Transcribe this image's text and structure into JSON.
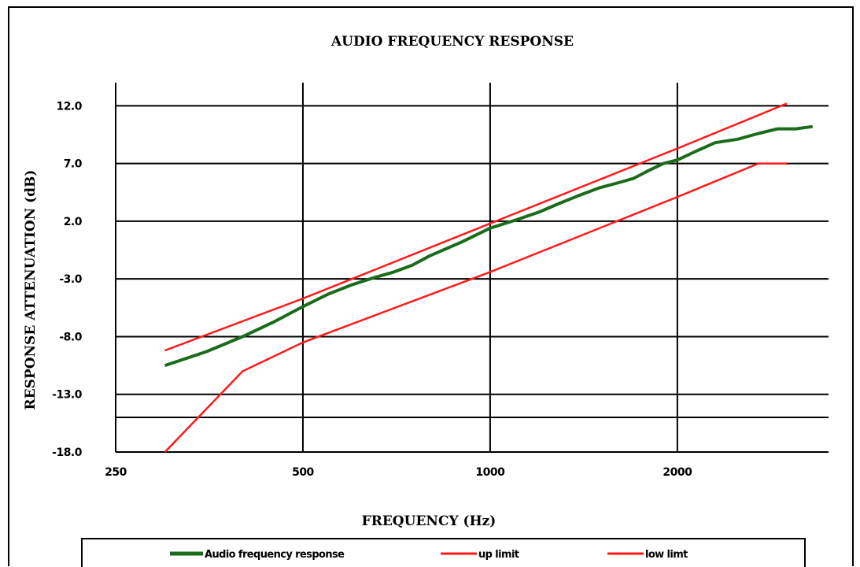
{
  "chart_data": {
    "type": "line",
    "title": "AUDIO FREQUENCY RESPONSE",
    "xlabel": "FREQUENCY (Hz)",
    "ylabel": "RESPONSE ATTENUATION (dB)",
    "x_scale": "log2",
    "xlim": [
      250,
      3500
    ],
    "ylim": [
      -18.0,
      14.0
    ],
    "x_ticks": [
      250,
      500,
      1000,
      2000
    ],
    "x_tick_labels": [
      "250",
      "500",
      "1000",
      "2000"
    ],
    "y_ticks": [
      -18.0,
      -13.0,
      -8.0,
      -3.0,
      2.0,
      7.0,
      12.0
    ],
    "y_tick_labels": [
      "-18.0",
      "-13.0",
      "-8.0",
      "-3.0",
      "2.0",
      "7.0",
      "12.0"
    ],
    "extra_gridline_y": -15.0,
    "grid": true,
    "legend_position": "bottom",
    "series": [
      {
        "name": "Audio frequency response",
        "color": "#1a6b1a",
        "points": [
          [
            300,
            -10.5
          ],
          [
            350,
            -9.3
          ],
          [
            400,
            -8.0
          ],
          [
            450,
            -6.7
          ],
          [
            500,
            -5.4
          ],
          [
            550,
            -4.3
          ],
          [
            600,
            -3.5
          ],
          [
            650,
            -2.9
          ],
          [
            700,
            -2.4
          ],
          [
            750,
            -1.8
          ],
          [
            800,
            -1.0
          ],
          [
            900,
            0.2
          ],
          [
            1000,
            1.4
          ],
          [
            1100,
            2.1
          ],
          [
            1200,
            2.8
          ],
          [
            1300,
            3.6
          ],
          [
            1400,
            4.3
          ],
          [
            1500,
            4.9
          ],
          [
            1600,
            5.3
          ],
          [
            1700,
            5.7
          ],
          [
            1800,
            6.4
          ],
          [
            1900,
            7.0
          ],
          [
            2000,
            7.3
          ],
          [
            2150,
            8.1
          ],
          [
            2300,
            8.8
          ],
          [
            2500,
            9.1
          ],
          [
            2700,
            9.6
          ],
          [
            2900,
            10.0
          ],
          [
            3100,
            10.0
          ],
          [
            3300,
            10.2
          ]
        ]
      },
      {
        "name": "up limit",
        "color": "#ff1a1a",
        "points": [
          [
            300,
            -9.2
          ],
          [
            500,
            -4.7
          ],
          [
            1000,
            1.8
          ],
          [
            2000,
            8.3
          ],
          [
            3000,
            12.2
          ]
        ]
      },
      {
        "name": "low limt",
        "color": "#ff1a1a",
        "points": [
          [
            300,
            -18.0
          ],
          [
            400,
            -11.0
          ],
          [
            500,
            -8.5
          ],
          [
            1000,
            -2.4
          ],
          [
            2000,
            4.1
          ],
          [
            2700,
            7.0
          ],
          [
            3000,
            7.0
          ]
        ]
      }
    ]
  }
}
